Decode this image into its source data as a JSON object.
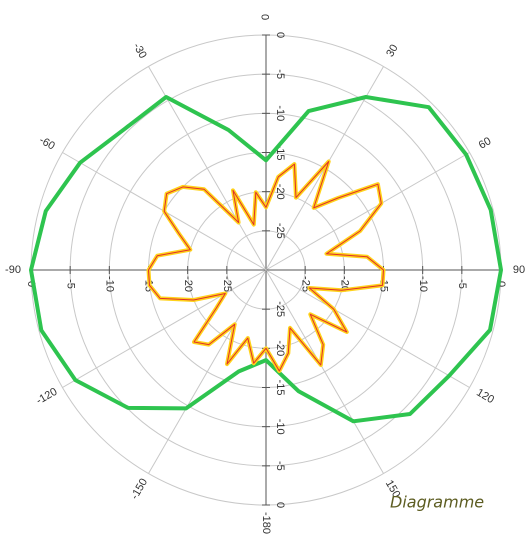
{
  "chart_data": {
    "type": "polar",
    "annotation": "Diagramme",
    "rlim": [
      -30,
      0
    ],
    "rticks": [
      -30,
      -25,
      -20,
      -15,
      -10,
      -5,
      0
    ],
    "thetaticks": [
      0,
      30,
      60,
      90,
      120,
      150,
      {
        "value": 180,
        "label": "-180"
      },
      {
        "value": 210,
        "label": "-150"
      },
      {
        "value": 240,
        "label": "-120"
      },
      {
        "value": 270,
        "label": "-90"
      },
      {
        "value": 300,
        "label": "-60"
      },
      {
        "value": 330,
        "label": "-30"
      }
    ],
    "grid": true,
    "series": [
      {
        "color": "#2ec44f",
        "theta": [
          0,
          15,
          30,
          45,
          60,
          75,
          90,
          105,
          120,
          135,
          150,
          165,
          180,
          195,
          210,
          225,
          240,
          255,
          270,
          285,
          300,
          315,
          330,
          345
        ],
        "values": [
          -16,
          -9,
          -4.5,
          -0.6,
          -0.5,
          -0.3,
          0,
          -0.4,
          -3,
          -4,
          -7.7,
          -14,
          -18.5,
          -16.6,
          -9.6,
          -5.1,
          -1.9,
          -0.3,
          0,
          -0.9,
          -2.6,
          -4.5,
          -4.5,
          -11.5
        ]
      },
      {
        "color": "#ffd21a",
        "edge_color": "#e0302a",
        "theta": [
          0,
          7.5,
          15,
          22.5,
          30,
          37.5,
          45,
          52.5,
          60,
          67.5,
          75,
          82.5,
          90,
          97.5,
          105,
          112.5,
          120,
          127.5,
          135,
          142.5,
          150,
          157.5,
          165,
          172.5,
          180,
          187.5,
          195,
          202.5,
          210,
          217.5,
          225,
          232.5,
          240,
          247.5,
          255,
          262.5,
          270,
          277.5,
          285,
          292.5,
          300,
          307.5,
          315,
          322.5,
          330,
          337.5,
          345,
          352.5
        ],
        "values": [
          -22,
          -18,
          -16,
          -20,
          -14,
          -20,
          -17,
          -12,
          -13,
          -17,
          -22,
          -17,
          -15,
          -15,
          -20,
          -24,
          -20,
          -17,
          -22,
          -18,
          -16,
          -22,
          -19,
          -17,
          -20,
          -18,
          -21,
          -17,
          -22,
          -18,
          -17,
          -22,
          -24,
          -20,
          -16,
          -15,
          -15,
          -16,
          -20,
          -18,
          -15,
          -14,
          -15,
          -17,
          -23,
          -19,
          -24,
          -20
        ]
      }
    ]
  }
}
